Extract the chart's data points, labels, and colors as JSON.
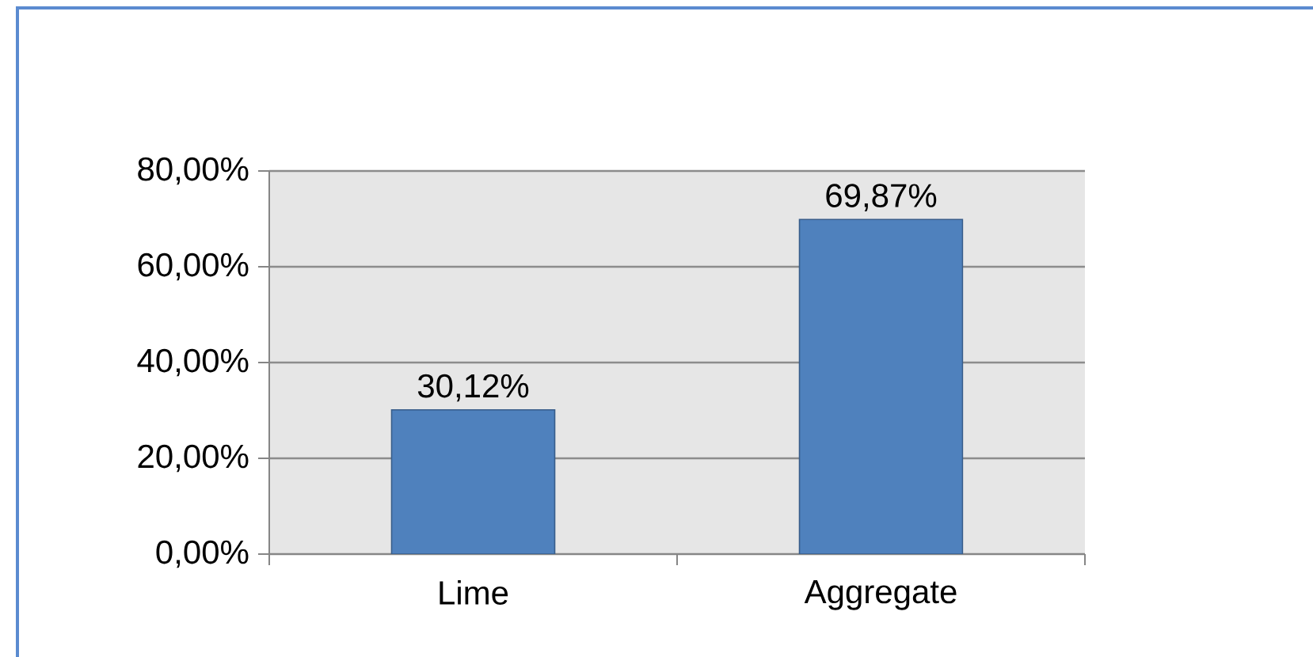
{
  "chart_data": {
    "type": "bar",
    "categories": [
      "Lime",
      "Aggregate"
    ],
    "values": [
      30.12,
      69.87
    ],
    "color": "#4f81bd",
    "value_labels": [
      "30,12%",
      "69,87%"
    ],
    "ylim": [
      0,
      80
    ],
    "yticks": [
      {
        "value": 0,
        "label": "0,00%"
      },
      {
        "value": 20,
        "label": "20,00%"
      },
      {
        "value": 40,
        "label": "40,00%"
      },
      {
        "value": 60,
        "label": "60,00%"
      },
      {
        "value": 80,
        "label": "80,00%"
      }
    ],
    "grid": "y"
  }
}
